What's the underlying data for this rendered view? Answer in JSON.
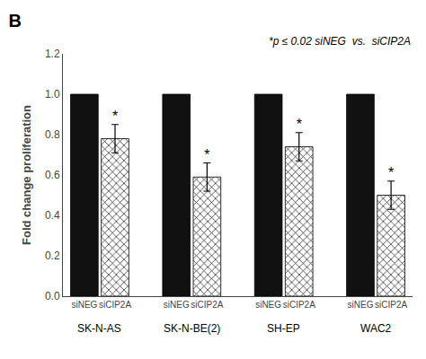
{
  "chart_data": {
    "type": "bar",
    "title": "B",
    "ylabel": "Fold change proliferation",
    "annotations": [
      "*p ≤ 0.02 siNEG  vs.  siCIP2A"
    ],
    "categories": [
      "SK-N-AS",
      "SK-N-BE(2)",
      "SH-EP",
      "WAC2"
    ],
    "series": [
      {
        "name": "siNEG",
        "color": "#111111",
        "values": [
          1.0,
          1.0,
          1.0,
          1.0
        ]
      },
      {
        "name": "siCIP2A",
        "color": "#ffffff",
        "marker": "x",
        "values": [
          0.78,
          0.59,
          0.74,
          0.5
        ],
        "errors": [
          0.07,
          0.07,
          0.07,
          0.07
        ],
        "significance": [
          "*",
          "*",
          "*",
          "*"
        ]
      }
    ],
    "ylim": [
      0,
      1.2
    ],
    "yticks": [
      {
        "value": 0,
        "label": "0.0"
      },
      0.2,
      0.4,
      0.6,
      0.8,
      {
        "value": 1,
        "label": "1.0"
      },
      1.2
    ],
    "grid": false
  }
}
